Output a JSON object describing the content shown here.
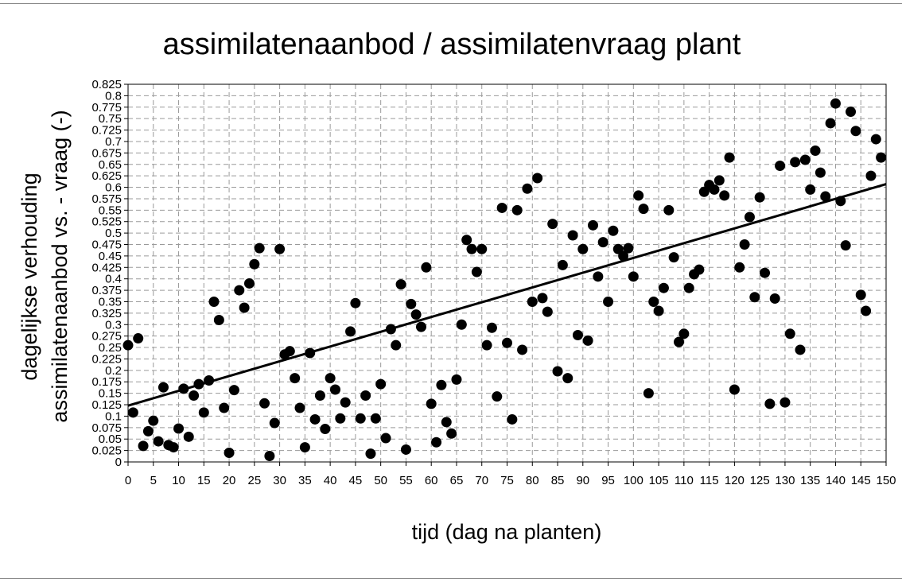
{
  "chart_data": {
    "type": "scatter",
    "title": "assimilatenaanbod / assimilatenvraag plant",
    "xlabel": "tijd (dag na planten)",
    "ylabel_lines": [
      "dagelijkse verhouding",
      "assimilatenaanbod vs. - vraag (-)"
    ],
    "xlim": [
      0,
      150
    ],
    "ylim": [
      0,
      0.825
    ],
    "x_ticks": [
      "0",
      "5",
      "10",
      "15",
      "20",
      "25",
      "30",
      "35",
      "40",
      "45",
      "50",
      "55",
      "60",
      "65",
      "70",
      "75",
      "80",
      "85",
      "90",
      "95",
      "100",
      "105",
      "110",
      "115",
      "120",
      "125",
      "130",
      "135",
      "140",
      "145",
      "150"
    ],
    "y_ticks": [
      "0",
      "0.025",
      "0.05",
      "0.075",
      "0.1",
      "0.125",
      "0.15",
      "0.175",
      "0.2",
      "0.225",
      "0.25",
      "0.275",
      "0.3",
      "0.325",
      "0.35",
      "0.375",
      "0.4",
      "0.425",
      "0.45",
      "0.475",
      "0.5",
      "0.525",
      "0.55",
      "0.575",
      "0.6",
      "0.625",
      "0.65",
      "0.675",
      "0.7",
      "0.725",
      "0.75",
      "0.775",
      "0.8",
      "0.825"
    ],
    "grid": true,
    "marker_color": "#000000",
    "points": [
      [
        0,
        0.255
      ],
      [
        1,
        0.108
      ],
      [
        2,
        0.27
      ],
      [
        3,
        0.035
      ],
      [
        4,
        0.067
      ],
      [
        5,
        0.09
      ],
      [
        6,
        0.045
      ],
      [
        7,
        0.163
      ],
      [
        8,
        0.037
      ],
      [
        9,
        0.032
      ],
      [
        10,
        0.073
      ],
      [
        11,
        0.16
      ],
      [
        12,
        0.055
      ],
      [
        13,
        0.145
      ],
      [
        14,
        0.17
      ],
      [
        15,
        0.108
      ],
      [
        16,
        0.178
      ],
      [
        17,
        0.35
      ],
      [
        18,
        0.31
      ],
      [
        19,
        0.118
      ],
      [
        20,
        0.02
      ],
      [
        21,
        0.157
      ],
      [
        22,
        0.375
      ],
      [
        23,
        0.337
      ],
      [
        24,
        0.39
      ],
      [
        25,
        0.432
      ],
      [
        26,
        0.467
      ],
      [
        27,
        0.128
      ],
      [
        28,
        0.013
      ],
      [
        29,
        0.085
      ],
      [
        30,
        0.465
      ],
      [
        31,
        0.235
      ],
      [
        32,
        0.242
      ],
      [
        33,
        0.183
      ],
      [
        34,
        0.118
      ],
      [
        35,
        0.032
      ],
      [
        36,
        0.238
      ],
      [
        37,
        0.093
      ],
      [
        38,
        0.145
      ],
      [
        39,
        0.072
      ],
      [
        40,
        0.183
      ],
      [
        41,
        0.158
      ],
      [
        42,
        0.095
      ],
      [
        43,
        0.13
      ],
      [
        44,
        0.285
      ],
      [
        45,
        0.347
      ],
      [
        46,
        0.095
      ],
      [
        47,
        0.145
      ],
      [
        48,
        0.018
      ],
      [
        49,
        0.095
      ],
      [
        50,
        0.17
      ],
      [
        51,
        0.052
      ],
      [
        52,
        0.29
      ],
      [
        53,
        0.255
      ],
      [
        54,
        0.388
      ],
      [
        55,
        0.027
      ],
      [
        56,
        0.345
      ],
      [
        57,
        0.322
      ],
      [
        58,
        0.295
      ],
      [
        59,
        0.425
      ],
      [
        60,
        0.127
      ],
      [
        61,
        0.043
      ],
      [
        62,
        0.168
      ],
      [
        63,
        0.087
      ],
      [
        64,
        0.062
      ],
      [
        65,
        0.18
      ],
      [
        66,
        0.3
      ],
      [
        67,
        0.485
      ],
      [
        68,
        0.465
      ],
      [
        69,
        0.415
      ],
      [
        70,
        0.465
      ],
      [
        71,
        0.255
      ],
      [
        72,
        0.293
      ],
      [
        73,
        0.143
      ],
      [
        74,
        0.555
      ],
      [
        75,
        0.26
      ],
      [
        76,
        0.093
      ],
      [
        77,
        0.55
      ],
      [
        78,
        0.245
      ],
      [
        79,
        0.597
      ],
      [
        80,
        0.35
      ],
      [
        81,
        0.62
      ],
      [
        82,
        0.358
      ],
      [
        83,
        0.328
      ],
      [
        84,
        0.52
      ],
      [
        85,
        0.198
      ],
      [
        86,
        0.43
      ],
      [
        87,
        0.183
      ],
      [
        88,
        0.495
      ],
      [
        89,
        0.277
      ],
      [
        90,
        0.465
      ],
      [
        91,
        0.265
      ],
      [
        92,
        0.517
      ],
      [
        93,
        0.405
      ],
      [
        94,
        0.48
      ],
      [
        95,
        0.35
      ],
      [
        96,
        0.505
      ],
      [
        97,
        0.465
      ],
      [
        98,
        0.45
      ],
      [
        99,
        0.467
      ],
      [
        100,
        0.405
      ],
      [
        101,
        0.582
      ],
      [
        102,
        0.553
      ],
      [
        103,
        0.15
      ],
      [
        104,
        0.35
      ],
      [
        105,
        0.33
      ],
      [
        106,
        0.38
      ],
      [
        107,
        0.55
      ],
      [
        108,
        0.447
      ],
      [
        109,
        0.262
      ],
      [
        110,
        0.28
      ],
      [
        111,
        0.38
      ],
      [
        112,
        0.41
      ],
      [
        113,
        0.42
      ],
      [
        114,
        0.59
      ],
      [
        115,
        0.605
      ],
      [
        116,
        0.595
      ],
      [
        117,
        0.615
      ],
      [
        118,
        0.582
      ],
      [
        119,
        0.665
      ],
      [
        120,
        0.158
      ],
      [
        121,
        0.425
      ],
      [
        122,
        0.475
      ],
      [
        123,
        0.535
      ],
      [
        124,
        0.36
      ],
      [
        125,
        0.578
      ],
      [
        126,
        0.413
      ],
      [
        127,
        0.127
      ],
      [
        128,
        0.357
      ],
      [
        129,
        0.647
      ],
      [
        130,
        0.13
      ],
      [
        131,
        0.28
      ],
      [
        132,
        0.655
      ],
      [
        133,
        0.245
      ],
      [
        134,
        0.66
      ],
      [
        135,
        0.595
      ],
      [
        136,
        0.68
      ],
      [
        137,
        0.632
      ],
      [
        138,
        0.58
      ],
      [
        139,
        0.74
      ],
      [
        140,
        0.783
      ],
      [
        141,
        0.57
      ],
      [
        142,
        0.473
      ],
      [
        143,
        0.765
      ],
      [
        144,
        0.723
      ],
      [
        145,
        0.365
      ],
      [
        146,
        0.33
      ],
      [
        147,
        0.625
      ],
      [
        148,
        0.705
      ],
      [
        149,
        0.665
      ]
    ],
    "trendline": {
      "x": [
        0,
        150
      ],
      "y": [
        0.123,
        0.607
      ],
      "color": "#000000"
    }
  }
}
